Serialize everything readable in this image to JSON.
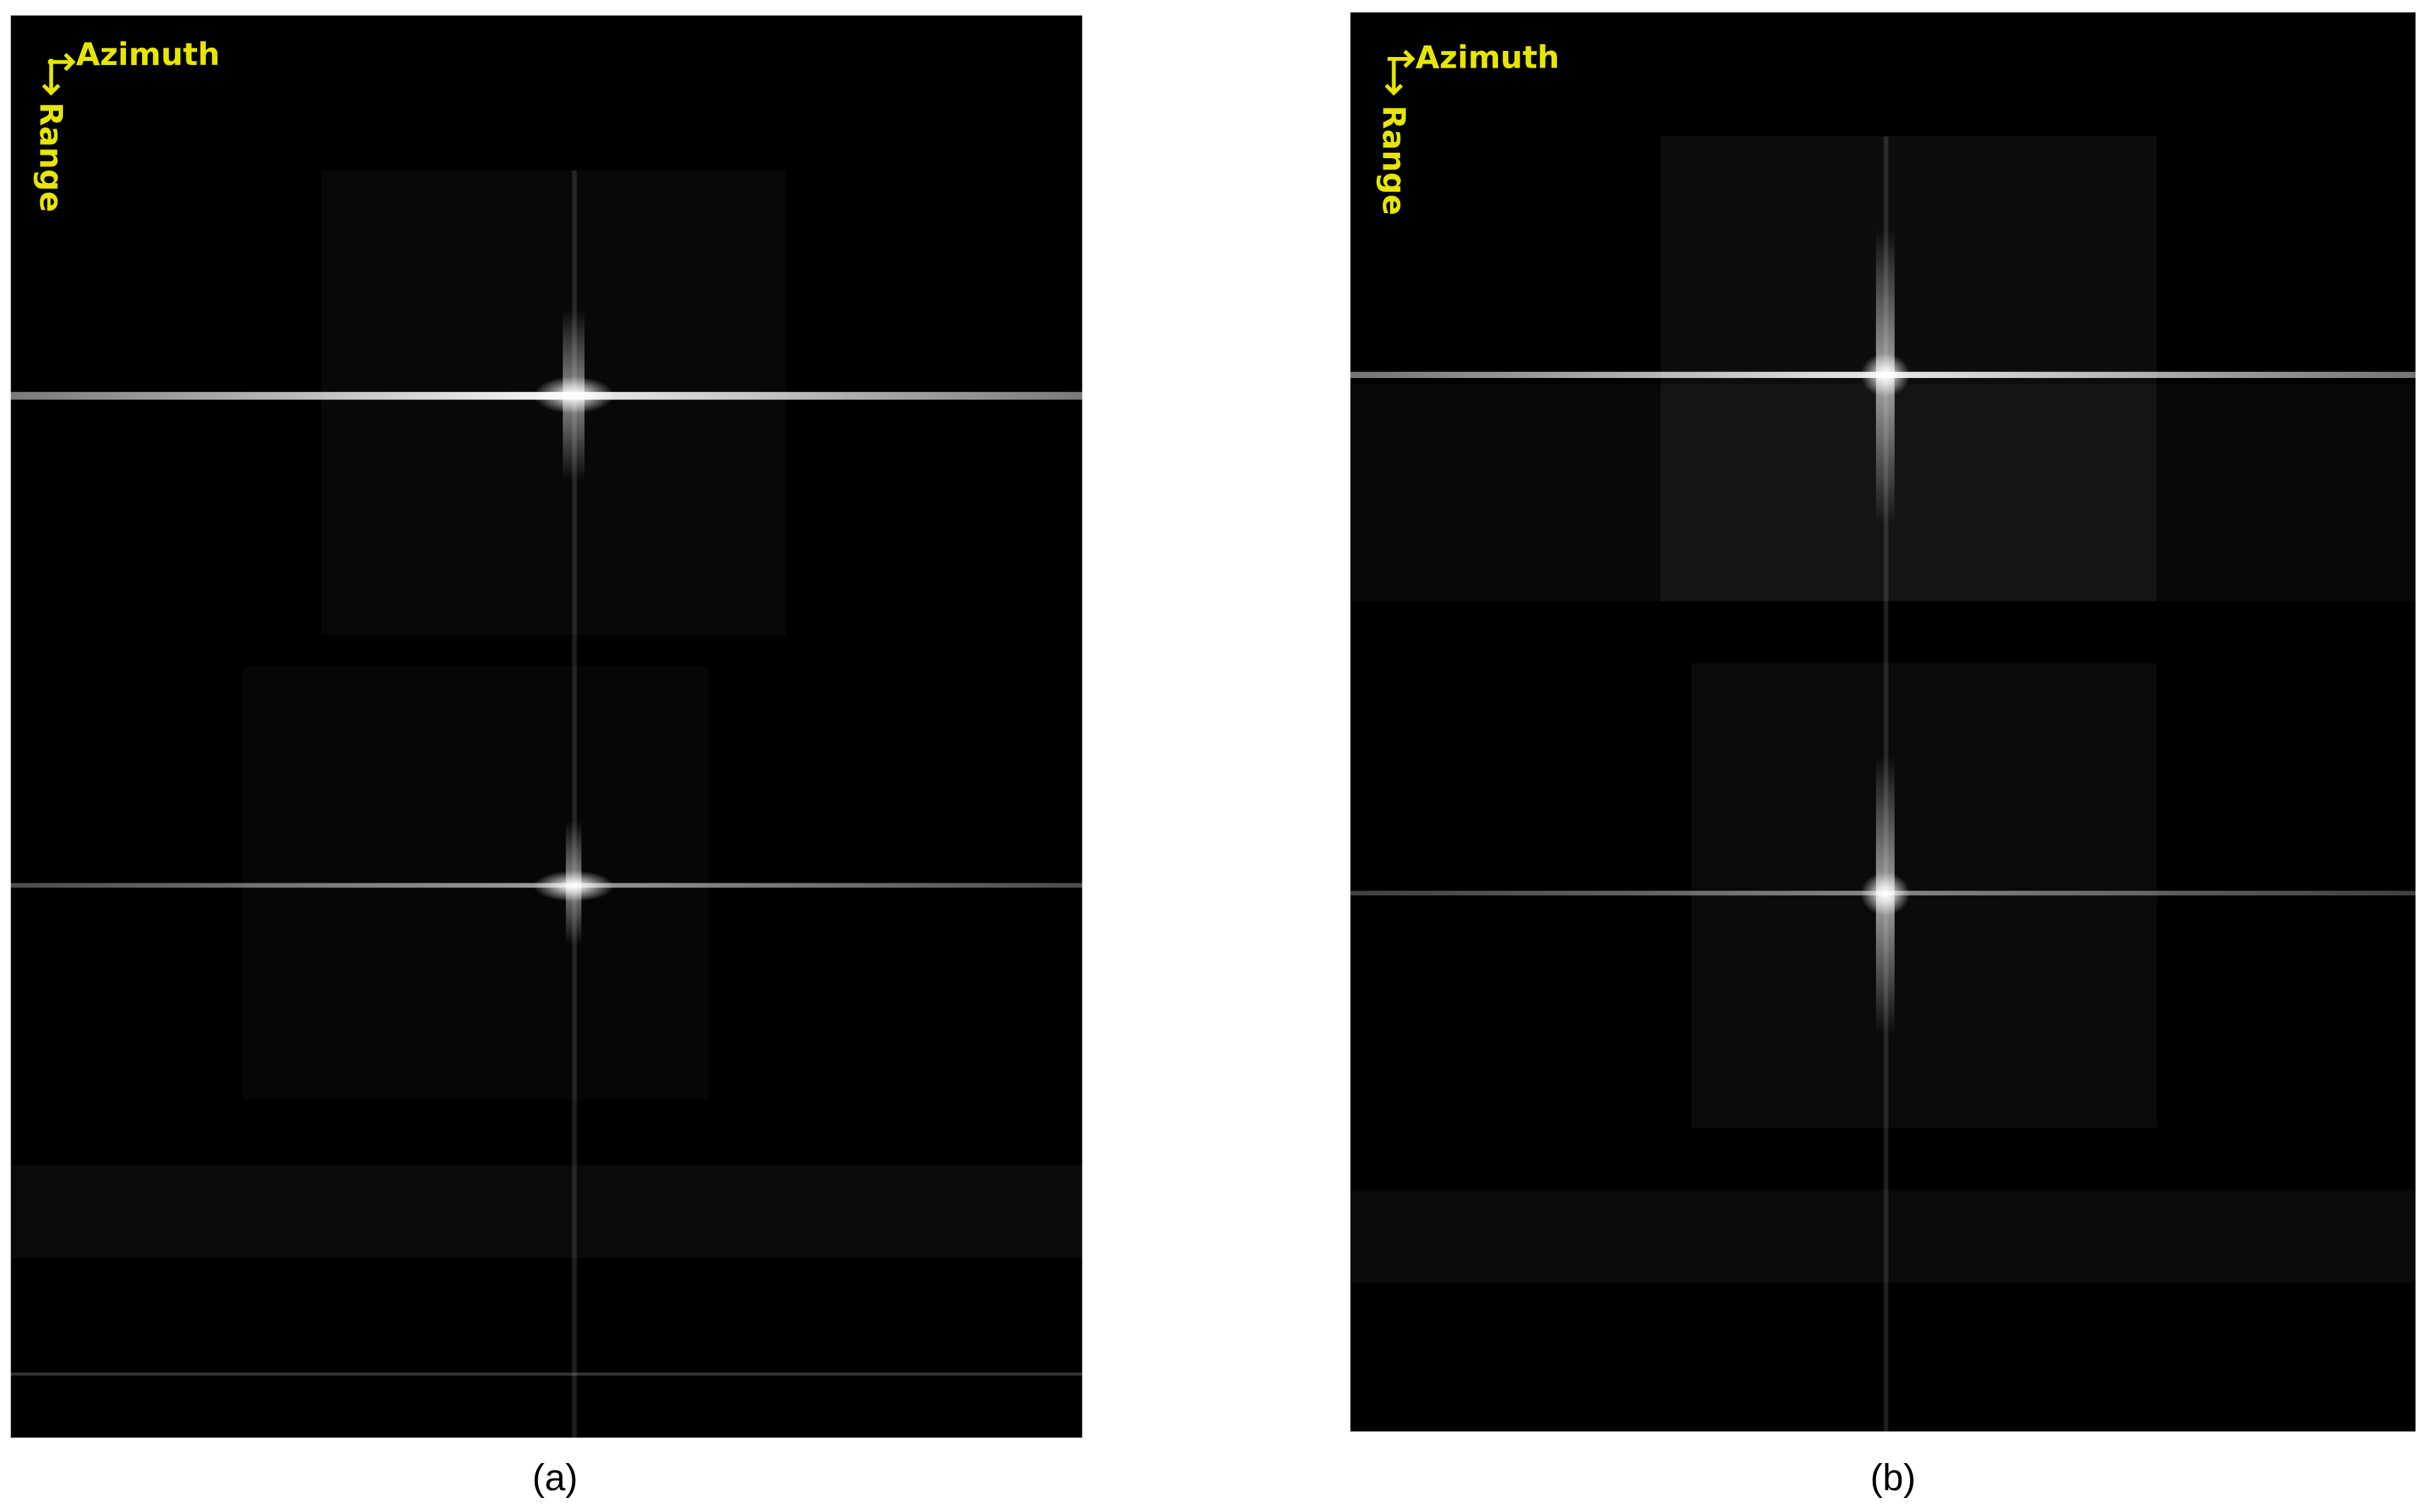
{
  "panels": [
    {
      "label": "(a)",
      "azimuth": "Azimuth",
      "range": "Range"
    },
    {
      "label": "(b)",
      "azimuth": "Azimuth",
      "range": "Range"
    }
  ]
}
